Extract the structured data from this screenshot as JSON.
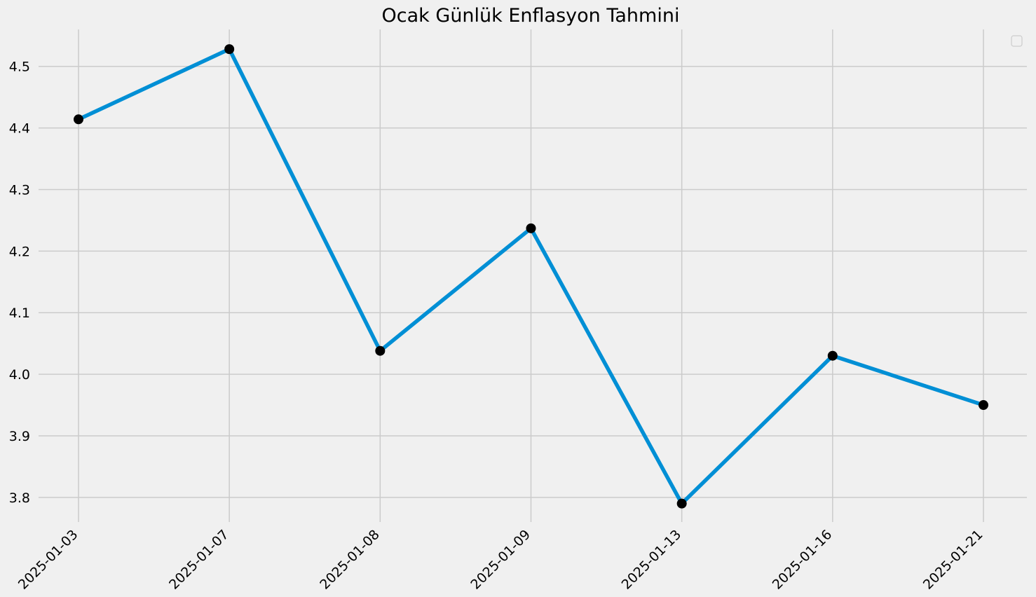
{
  "chart_data": {
    "type": "line",
    "title": "Ocak Günlük Enflasyon Tahmini",
    "xlabel": "",
    "ylabel": "",
    "categories": [
      "2025-01-03",
      "2025-01-07",
      "2025-01-08",
      "2025-01-09",
      "2025-01-13",
      "2025-01-16",
      "2025-01-21"
    ],
    "series": [
      {
        "values": [
          4.414,
          4.528,
          4.038,
          4.237,
          3.79,
          4.03,
          3.95
        ],
        "line_color": "#008fd5",
        "marker_color": "#000000"
      }
    ],
    "ylim": [
      3.76,
      4.56
    ],
    "yticks": [
      3.8,
      3.9,
      4.0,
      4.1,
      4.2,
      4.3,
      4.4,
      4.5
    ],
    "grid": true,
    "legend": "top-right (empty)",
    "colors": {
      "background": "#f0f0f0",
      "grid": "#cbcbcb"
    }
  }
}
